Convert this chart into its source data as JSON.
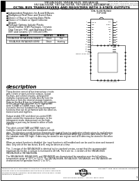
{
  "bg_color": "#ffffff",
  "title_lines": [
    "SN54ALS648, SN54ALS649, SN54AS648",
    "SN74ALS648A, SN74ALS648A, SN74AS640, SN74AS648",
    "OCTAL BUS TRANSCEIVERS AND REGISTERS WITH 3-STATE OUTPUTS"
  ],
  "header_right_lines": [
    "SN54ALS648, SN54ALS649, SN54AS648",
    "SN74ALS648A, SN74ALS648A, SN74AS640, SN74AS648",
    "SPECIFICATIONS...  SUBJECT TO CHANGE WITHOUT NOTICE",
    "POST OFFICE"
  ],
  "doc_num": "SSRS01568      DECEMBER 1983 - REVISED JANUARY 1995",
  "bullet_points": [
    "Independent Registers for A and B Buses",
    "Multiplexed Real-Time and Stored Data",
    "Choice of True or Inverting Data Paths",
    "Choice of 3-State or Open-Collector Outputs",
    "Package Options Include Plastic Small-Outline (DW) Packages, Ceramic Chip Carriers (FK), and Standard Plastic (NT) and Ceramic (JT) 300-mil DIPs"
  ],
  "table_headers": [
    "DEVICE",
    "OUTPUT",
    "SENSE"
  ],
  "table_rows": [
    [
      "SN54ALS648, SN74ALS648A, 648A(N)",
      "3-State",
      "True"
    ],
    [
      "SN54ALS649, SN74ALS649, 649(N)",
      "3-State",
      "Inverting"
    ]
  ],
  "dip_left_labels": [
    "CLKAB",
    "SAB",
    "OEA",
    "DIR",
    "A1",
    "A2",
    "A3",
    "A4",
    "A5",
    "A6",
    "A7",
    "A8",
    "GND"
  ],
  "dip_right_labels": [
    "VCC",
    "CLKBA",
    "SBA",
    "OEB",
    "B8",
    "B7",
    "B6",
    "B5",
    "B4",
    "B3",
    "B2",
    "B1",
    "GND"
  ],
  "body_left_lines": [
    "These devices consist of bus transceiver circuits",
    "with 3-state or open-collector outputs, D-type",
    "flip-flops, and control circuitry, arranged for",
    "multiplex transmission of data directly from the",
    "data bus or from the internal storage registers.",
    "Data on the A or B bus is clocked into the registers",
    "on the low-to-high transition of the appropriate",
    "clock (CLKAB or CLKBA) input. Figure 1",
    "illustrates the four fundamental bus-management",
    "functions that can be performed with the selection,",
    "transceivers and registers.",
    " ",
    "Output enable (OE) and direction-control (DIR)",
    "inputs control the transceiver functions. In the",
    "transparent mode, data present on the high-",
    "impedance port may be stored in either or both",
    "registers.",
    " ",
    "The select-control (SAB and SBA) inputs can",
    "multiplex stored and real-time transparent-mode"
  ],
  "body_full_lines": [
    "data. The direction-control function eliminates the typical bussing-application infrastructure by multiplexing",
    "the transition between stored and real-time data. DIR determines which bus receives data from OE bus. In",
    "the isolation mode (OE high), if data may be stored in one register and all B data may be stored in the other",
    "register.",
    " ",
    "When an output function is disabled, the input function is still enabled and can be used to store and transmit",
    "data. Only one of the two buses, A or B, may be driven at a time.",
    " ",
    "The -1 version of the SN54ALS648 is identical to the standard version, except that the recommended",
    "maximum IOL for the -1 version is increased to 48 mA. There are no -1 versions of the SN54ALS649,",
    "SN54ALS648 or SN74ALS648A.",
    " ",
    "The SN54ALS648, SN54ALS649, and SN54AS648 are characterized for operation over the full military",
    "temperature range of -55°C to 125°C. The SN74ALS648A, SN74ALS649, SN74AS648, and SN74AS648 are",
    "characterized for operation from 0°C to 70°C."
  ],
  "footer_text_lines": [
    "PRODUCTION DATA information is current as of publication date.",
    "Products conform to specifications per the terms of Texas Instruments",
    "standard warranty. Production processing does not necessarily include",
    "testing of all parameters."
  ],
  "copyright_text": "Copyright © 1988, Texas Instruments Incorporated",
  "page_num": "1"
}
